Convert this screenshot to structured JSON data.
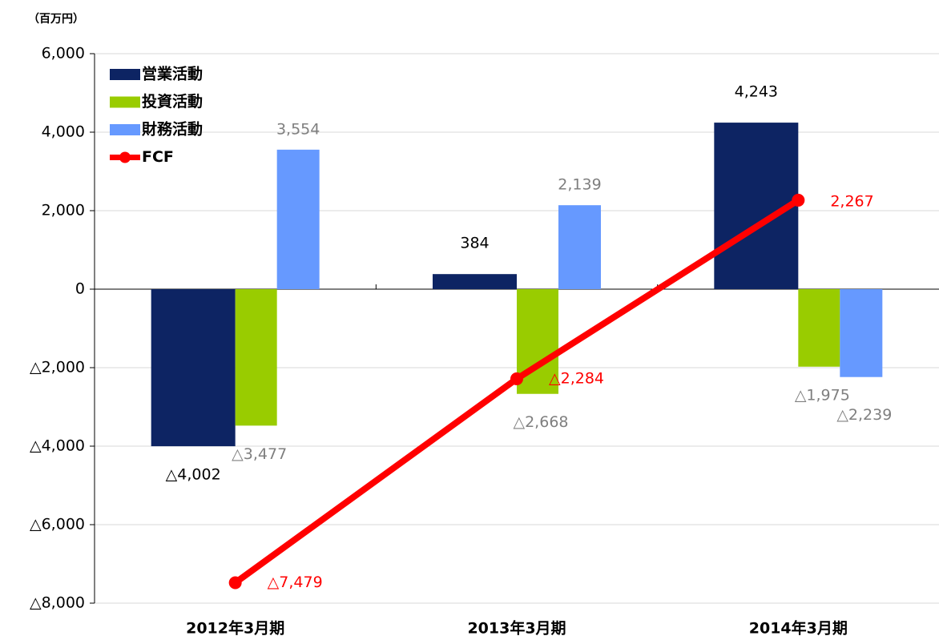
{
  "chart_data": {
    "type": "bar",
    "y_axis_label": "（百万円）",
    "categories": [
      "2012年3月期",
      "2013年3月期",
      "2014年3月期"
    ],
    "series": [
      {
        "name": "営業活動",
        "color": "#0d2463",
        "label_color": "#000000",
        "values": [
          -4002,
          384,
          4243
        ],
        "value_labels": [
          "△4,002",
          "384",
          "4,243"
        ]
      },
      {
        "name": "投資活動",
        "color": "#99cc00",
        "label_color": "#7f7f7f",
        "values": [
          -3477,
          -2668,
          -1975
        ],
        "value_labels": [
          "△3,477",
          "△2,668",
          "△1,975"
        ]
      },
      {
        "name": "財務活動",
        "color": "#6699ff",
        "label_color": "#7f7f7f",
        "values": [
          3554,
          2139,
          -2239
        ],
        "value_labels": [
          "3,554",
          "2,139",
          "△2,239"
        ]
      },
      {
        "name": "FCF",
        "type": "line",
        "color": "#ff0000",
        "label_color": "#ff0000",
        "values": [
          -7479,
          -2284,
          2267
        ],
        "value_labels": [
          "△7,479",
          "△2,284",
          "2,267"
        ]
      }
    ],
    "ylim": [
      -8000,
      6000
    ],
    "yticks": [
      {
        "value": 6000,
        "label": "6,000"
      },
      {
        "value": 4000,
        "label": "4,000"
      },
      {
        "value": 2000,
        "label": "2,000"
      },
      0,
      {
        "value": -2000,
        "label": "△2,000"
      },
      {
        "value": -4000,
        "label": "△4,000"
      },
      {
        "value": -6000,
        "label": "△6,000"
      },
      {
        "value": -8000,
        "label": "△8,000"
      }
    ],
    "grid": true,
    "legend": "top-left"
  }
}
